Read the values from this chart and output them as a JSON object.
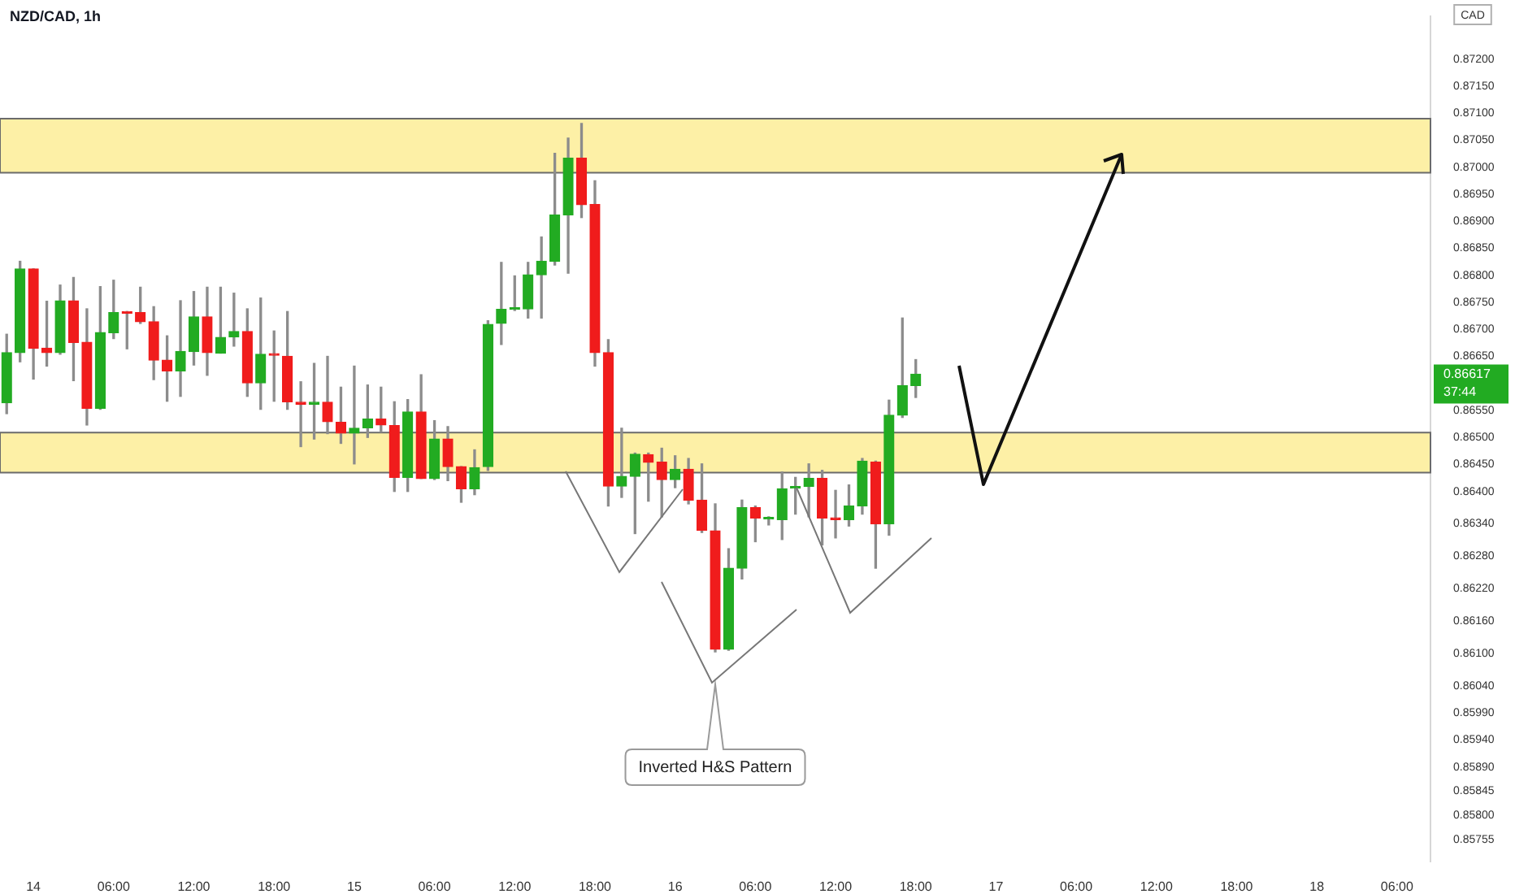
{
  "chart_data": {
    "type": "candlestick",
    "title": "NZD/CAD, 1h",
    "ylabel": "CAD",
    "categories": [
      null,
      null,
      "14",
      null,
      null,
      null,
      null,
      null,
      "06:00",
      null,
      null,
      null,
      null,
      null,
      "12:00",
      null,
      null,
      null,
      null,
      null,
      "18:00",
      null,
      null,
      null,
      null,
      null,
      "15",
      null,
      null,
      null,
      null,
      null,
      "06:00",
      null,
      null,
      null,
      null,
      null,
      "12:00",
      null,
      null,
      null,
      null,
      null,
      "18:00",
      null,
      null,
      null,
      null,
      null,
      "16",
      null,
      null,
      null,
      null,
      null,
      "06:00",
      null,
      null,
      null,
      null,
      null,
      "12:00",
      null,
      null,
      null,
      null,
      null,
      "18:00",
      null,
      null,
      null,
      null,
      null,
      "17",
      null,
      null,
      null,
      null,
      null,
      "06:00",
      null,
      null,
      null,
      null,
      null,
      "12:00",
      null,
      null,
      null,
      null,
      null,
      "18:00",
      null,
      null,
      null,
      null,
      null,
      "18",
      null,
      null,
      null,
      null,
      null,
      "06:00",
      null,
      null
    ],
    "ohlc": [
      [
        0.86564,
        0.86691,
        0.86544,
        0.86657
      ],
      [
        0.86657,
        0.86826,
        0.8664,
        0.86812
      ],
      [
        0.86812,
        0.86812,
        0.86608,
        0.86665
      ],
      [
        0.86665,
        0.86752,
        0.86632,
        0.86657
      ],
      [
        0.86657,
        0.86782,
        0.86654,
        0.86753
      ],
      [
        0.86753,
        0.86796,
        0.86605,
        0.86676
      ],
      [
        0.86676,
        0.86738,
        0.86523,
        0.86554
      ],
      [
        0.86554,
        0.86779,
        0.86552,
        0.86694
      ],
      [
        0.86694,
        0.86791,
        0.86683,
        0.86731
      ],
      [
        0.86732,
        0.86733,
        0.86664,
        0.8673
      ],
      [
        0.86731,
        0.86778,
        0.86711,
        0.86714
      ],
      [
        0.86714,
        0.86742,
        0.86607,
        0.86643
      ],
      [
        0.86643,
        0.86688,
        0.86567,
        0.86623
      ],
      [
        0.86623,
        0.86753,
        0.86576,
        0.86659
      ],
      [
        0.86659,
        0.8677,
        0.86634,
        0.86723
      ],
      [
        0.86723,
        0.86778,
        0.86615,
        0.86657
      ],
      [
        0.86656,
        0.86778,
        0.86656,
        0.86685
      ],
      [
        0.86686,
        0.86767,
        0.86669,
        0.86696
      ],
      [
        0.86696,
        0.86738,
        0.86576,
        0.86601
      ],
      [
        0.86601,
        0.86758,
        0.86552,
        0.86654
      ],
      [
        0.86655,
        0.86697,
        0.86567,
        0.86652
      ],
      [
        0.8665,
        0.86733,
        0.86552,
        0.86566
      ],
      [
        0.86565,
        0.86603,
        0.86483,
        0.86561
      ],
      [
        0.86561,
        0.86637,
        0.86497,
        0.86565
      ],
      [
        0.86565,
        0.8665,
        0.86507,
        0.86529
      ],
      [
        0.86528,
        0.86593,
        0.86489,
        0.86508
      ],
      [
        0.86508,
        0.86632,
        0.86451,
        0.86517
      ],
      [
        0.86518,
        0.86597,
        0.865,
        0.86534
      ],
      [
        0.86534,
        0.86593,
        0.8651,
        0.86523
      ],
      [
        0.86522,
        0.86566,
        0.864,
        0.86426
      ],
      [
        0.86426,
        0.8657,
        0.864,
        0.86547
      ],
      [
        0.86547,
        0.86616,
        0.86424,
        0.86424
      ],
      [
        0.86424,
        0.86531,
        0.86422,
        0.86497
      ],
      [
        0.86497,
        0.8652,
        0.8642,
        0.86446
      ],
      [
        0.86446,
        0.86446,
        0.8638,
        0.86405
      ],
      [
        0.86405,
        0.86477,
        0.86394,
        0.86444
      ],
      [
        0.86446,
        0.86716,
        0.86439,
        0.86709
      ],
      [
        0.86711,
        0.86824,
        0.86672,
        0.86737
      ],
      [
        0.86737,
        0.86799,
        0.86735,
        0.86739
      ],
      [
        0.86738,
        0.86824,
        0.86721,
        0.86801
      ],
      [
        0.86801,
        0.86871,
        0.86721,
        0.86826
      ],
      [
        0.86826,
        0.87026,
        0.86819,
        0.86912
      ],
      [
        0.86912,
        0.87054,
        0.86804,
        0.87017
      ],
      [
        0.87017,
        0.87081,
        0.86907,
        0.86931
      ],
      [
        0.86931,
        0.86975,
        0.86632,
        0.86657
      ],
      [
        0.86657,
        0.86681,
        0.86373,
        0.8641
      ],
      [
        0.8641,
        0.86517,
        0.86389,
        0.86428
      ],
      [
        0.86428,
        0.86471,
        0.86322,
        0.86469
      ],
      [
        0.86468,
        0.86471,
        0.86382,
        0.86454
      ],
      [
        0.86454,
        0.8648,
        0.86353,
        0.86422
      ],
      [
        0.86422,
        0.86466,
        0.86407,
        0.86441
      ],
      [
        0.86441,
        0.86461,
        0.86377,
        0.86384
      ],
      [
        0.86384,
        0.86451,
        0.86324,
        0.86328
      ],
      [
        0.86327,
        0.86377,
        0.86103,
        0.86108
      ],
      [
        0.86108,
        0.86294,
        0.86106,
        0.86258
      ],
      [
        0.86258,
        0.86384,
        0.86238,
        0.8637
      ],
      [
        0.8637,
        0.86373,
        0.86307,
        0.86351
      ],
      [
        0.86349,
        0.86353,
        0.86338,
        0.86351
      ],
      [
        0.86348,
        0.86436,
        0.86311,
        0.86405
      ],
      [
        0.86406,
        0.86426,
        0.86358,
        0.86409
      ],
      [
        0.86409,
        0.86451,
        0.86353,
        0.86424
      ],
      [
        0.86424,
        0.86439,
        0.86301,
        0.86351
      ],
      [
        0.86351,
        0.86402,
        0.86314,
        0.86348
      ],
      [
        0.86348,
        0.86412,
        0.86336,
        0.86373
      ],
      [
        0.86373,
        0.86461,
        0.86358,
        0.86456
      ],
      [
        0.86454,
        0.86456,
        0.86258,
        0.8634
      ],
      [
        0.8634,
        0.86569,
        0.86319,
        0.86541
      ],
      [
        0.86541,
        0.86721,
        0.86537,
        0.86596
      ],
      [
        0.86596,
        0.86644,
        0.86574,
        0.86617
      ],
      null,
      null,
      null,
      null,
      null,
      null,
      null,
      null,
      null,
      null,
      null,
      null,
      null,
      null,
      null,
      null,
      null,
      null,
      null,
      null,
      null,
      null,
      null,
      null,
      null,
      null,
      null,
      null,
      null,
      null,
      null,
      null,
      null,
      null,
      null,
      null,
      null,
      null
    ],
    "colors": [
      "#22ab22",
      "#22ab22",
      "#f01c1c",
      "#f01c1c",
      "#22ab22",
      "#f01c1c",
      "#f01c1c",
      "#22ab22",
      "#22ab22",
      "#f01c1c",
      "#f01c1c",
      "#f01c1c",
      "#f01c1c",
      "#22ab22",
      "#22ab22",
      "#f01c1c",
      "#22ab22",
      "#22ab22",
      "#f01c1c",
      "#22ab22",
      "#f01c1c",
      "#f01c1c",
      "#f01c1c",
      "#22ab22",
      "#f01c1c",
      "#f01c1c",
      "#22ab22",
      "#22ab22",
      "#f01c1c",
      "#f01c1c",
      "#22ab22",
      "#f01c1c",
      "#22ab22",
      "#f01c1c",
      "#f01c1c",
      "#22ab22",
      "#22ab22",
      "#22ab22",
      "#22ab22",
      "#22ab22",
      "#22ab22",
      "#22ab22",
      "#22ab22",
      "#f01c1c",
      "#f01c1c",
      "#f01c1c",
      "#22ab22",
      "#22ab22",
      "#f01c1c",
      "#f01c1c",
      "#22ab22",
      "#f01c1c",
      "#f01c1c",
      "#f01c1c",
      "#22ab22",
      "#22ab22",
      "#f01c1c",
      "#22ab22",
      "#22ab22",
      "#22ab22",
      "#22ab22",
      "#f01c1c",
      "#f01c1c",
      "#22ab22",
      "#22ab22",
      "#f01c1c",
      "#22ab22",
      "#22ab22",
      "#22ab22",
      null,
      null,
      null,
      null,
      null,
      null,
      null,
      null,
      null,
      null,
      null,
      null,
      null,
      null,
      null,
      null,
      null,
      null,
      null,
      null,
      null,
      null,
      null,
      null,
      null,
      null,
      null,
      null,
      null,
      null,
      null,
      null,
      null,
      null,
      null,
      null,
      null,
      null
    ],
    "ylim": [
      0.85715,
      0.87279
    ],
    "yticks": [
      {
        "value": 0.872,
        "label": "0.87200"
      },
      {
        "value": 0.8715,
        "label": "0.87150"
      },
      {
        "value": 0.871,
        "label": "0.87100"
      },
      {
        "value": 0.8705,
        "label": "0.87050"
      },
      {
        "value": 0.87,
        "label": "0.87000"
      },
      {
        "value": 0.8695,
        "label": "0.86950"
      },
      {
        "value": 0.869,
        "label": "0.86900"
      },
      {
        "value": 0.8685,
        "label": "0.86850"
      },
      {
        "value": 0.868,
        "label": "0.86800"
      },
      {
        "value": 0.8675,
        "label": "0.86750"
      },
      {
        "value": 0.867,
        "label": "0.86700"
      },
      {
        "value": 0.8665,
        "label": "0.86650"
      },
      {
        "value": 0.8655,
        "label": "0.86550"
      },
      {
        "value": 0.865,
        "label": "0.86500"
      },
      {
        "value": 0.8645,
        "label": "0.86450"
      },
      {
        "value": 0.864,
        "label": "0.86400"
      },
      {
        "value": 0.8634,
        "label": "0.86340"
      },
      {
        "value": 0.8628,
        "label": "0.86280"
      },
      {
        "value": 0.8622,
        "label": "0.86220"
      },
      {
        "value": 0.8616,
        "label": "0.86160"
      },
      {
        "value": 0.861,
        "label": "0.86100"
      },
      {
        "value": 0.8604,
        "label": "0.86040"
      },
      {
        "value": 0.8599,
        "label": "0.85990"
      },
      {
        "value": 0.8594,
        "label": "0.85940"
      },
      {
        "value": 0.8589,
        "label": "0.85890"
      },
      {
        "value": 0.85845,
        "label": "0.85845"
      },
      {
        "value": 0.858,
        "label": "0.85800"
      },
      {
        "value": 0.85755,
        "label": "0.85755"
      }
    ],
    "bands": [
      {
        "axis": "y",
        "from": 0.8699,
        "to": 0.8709,
        "color": "#fdf0a6"
      },
      {
        "axis": "y",
        "from": 0.86435,
        "to": 0.86509,
        "color": "#fdf0a6"
      }
    ],
    "annotations": [
      "Inverted H&S Pattern",
      "0.86617",
      "37:44"
    ]
  }
}
